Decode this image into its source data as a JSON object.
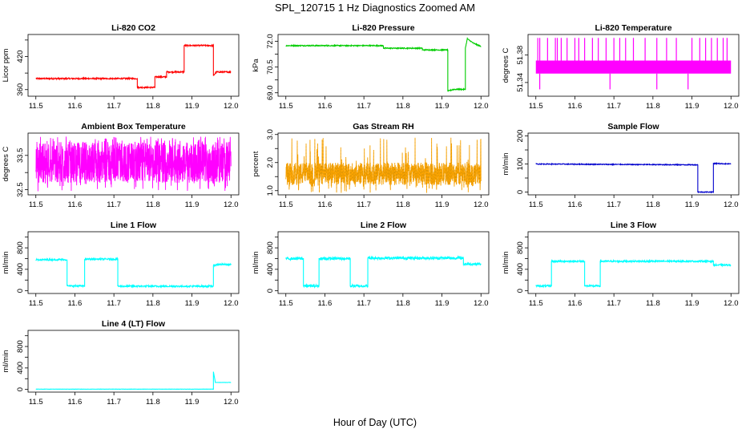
{
  "figure": {
    "title": "SPL_120715  1 Hz Diagnostics Zoomed AM",
    "xlabel": "Hour of Day (UTC)"
  },
  "chart_data": [
    {
      "id": "co2",
      "type": "line",
      "title": "Li-820 CO2",
      "ylabel": "Licor ppm",
      "color": "#ff0000",
      "xlim": [
        11.48,
        12.02
      ],
      "ylim": [
        348,
        460
      ],
      "xticks": [
        11.5,
        11.6,
        11.7,
        11.8,
        11.9,
        12.0
      ],
      "xtick_labels": [
        "11.5",
        "11.6",
        "11.7",
        "11.8",
        "11.9",
        "12.0"
      ],
      "yticks": [
        360,
        390,
        420,
        450
      ],
      "ytick_labels": [
        "360",
        "",
        "420",
        ""
      ],
      "noise": 1.2,
      "points": [
        [
          11.5,
          380
        ],
        [
          11.76,
          380
        ],
        [
          11.76,
          364
        ],
        [
          11.805,
          364
        ],
        [
          11.805,
          383
        ],
        [
          11.835,
          383
        ],
        [
          11.835,
          392
        ],
        [
          11.88,
          392
        ],
        [
          11.88,
          440
        ],
        [
          11.955,
          440
        ],
        [
          11.955,
          385
        ],
        [
          11.962,
          392
        ],
        [
          12.0,
          392
        ]
      ]
    },
    {
      "id": "pressure",
      "type": "line",
      "title": "Li-820 Pressure",
      "ylabel": "kPa",
      "color": "#00cc00",
      "xlim": [
        11.48,
        12.02
      ],
      "ylim": [
        68.8,
        72.4
      ],
      "xticks": [
        11.5,
        11.6,
        11.7,
        11.8,
        11.9,
        12.0
      ],
      "xtick_labels": [
        "11.5",
        "11.6",
        "11.7",
        "11.8",
        "11.9",
        "12.0"
      ],
      "yticks": [
        69.0,
        69.75,
        70.5,
        71.25,
        72.0
      ],
      "ytick_labels": [
        "69.0",
        "",
        "70.5",
        "",
        "72.0"
      ],
      "noise": 0.03,
      "points": [
        [
          11.5,
          71.75
        ],
        [
          11.75,
          71.75
        ],
        [
          11.75,
          71.6
        ],
        [
          11.85,
          71.6
        ],
        [
          11.85,
          71.5
        ],
        [
          11.915,
          71.5
        ],
        [
          11.915,
          69.1
        ],
        [
          11.93,
          69.2
        ],
        [
          11.96,
          69.2
        ],
        [
          11.96,
          71.6
        ],
        [
          11.965,
          72.15
        ],
        [
          11.98,
          71.9
        ],
        [
          12.0,
          71.7
        ]
      ]
    },
    {
      "id": "licor_temp",
      "type": "line",
      "title": "Li-820 Temperature",
      "ylabel": "degrees C",
      "color": "#ff00ff",
      "xlim": [
        11.48,
        12.02
      ],
      "ylim": [
        51.32,
        51.41
      ],
      "xticks": [
        11.5,
        11.6,
        11.7,
        11.8,
        11.9,
        12.0
      ],
      "xtick_labels": [
        "11.5",
        "11.6",
        "11.7",
        "11.8",
        "11.9",
        "12.0"
      ],
      "yticks": [
        51.34,
        51.38
      ],
      "ytick_labels": [
        "51.34",
        "51.38"
      ],
      "band": [
        51.353,
        51.372
      ],
      "spikes_up": [
        11.505,
        11.51,
        11.53,
        11.55,
        11.555,
        11.565,
        11.58,
        11.6,
        11.61,
        11.625,
        11.645,
        11.66,
        11.68,
        11.7,
        11.715,
        11.73,
        11.75,
        11.78,
        11.81,
        11.835,
        11.86,
        11.9,
        11.92,
        11.935,
        11.95,
        11.965,
        11.98,
        11.99
      ],
      "spikes_down": [
        11.51,
        11.69,
        11.81,
        11.89
      ],
      "spike_top": 51.405,
      "spike_bottom": 51.33
    },
    {
      "id": "box_temp",
      "type": "line",
      "title": "Ambient Box Temperature",
      "ylabel": "degrees C",
      "color": "#ff00ff",
      "xlim": [
        11.48,
        12.02
      ],
      "ylim": [
        32.35,
        34.15
      ],
      "xticks": [
        11.5,
        11.6,
        11.7,
        11.8,
        11.9,
        12.0
      ],
      "xtick_labels": [
        "11.5",
        "11.6",
        "11.7",
        "11.8",
        "11.9",
        "12.0"
      ],
      "yticks": [
        32.5,
        33.0,
        33.5
      ],
      "ytick_labels": [
        "32.5",
        "",
        "33.5"
      ],
      "band": [
        32.7,
        33.9
      ],
      "extremes": [
        32.45,
        34.05
      ]
    },
    {
      "id": "rh",
      "type": "line",
      "title": "Gas Stream RH",
      "ylabel": "percent",
      "color": "#ffa500",
      "xlim": [
        11.48,
        12.02
      ],
      "ylim": [
        0.85,
        3.05
      ],
      "xticks": [
        11.5,
        11.6,
        11.7,
        11.8,
        11.9,
        12.0
      ],
      "xtick_labels": [
        "11.5",
        "11.6",
        "11.7",
        "11.8",
        "11.9",
        "12.0"
      ],
      "yticks": [
        1.0,
        1.5,
        2.0,
        2.5,
        3.0
      ],
      "ytick_labels": [
        "1.0",
        "",
        "2.0",
        "",
        "3.0"
      ],
      "band": [
        1.2,
        2.0
      ],
      "extremes": [
        0.9,
        2.9
      ]
    },
    {
      "id": "sample_flow",
      "type": "line",
      "title": "Sample Flow",
      "ylabel": "ml/min",
      "color": "#0000cd",
      "xlim": [
        11.48,
        12.02
      ],
      "ylim": [
        -10,
        210
      ],
      "xticks": [
        11.5,
        11.6,
        11.7,
        11.8,
        11.9,
        12.0
      ],
      "xtick_labels": [
        "11.5",
        "11.6",
        "11.7",
        "11.8",
        "11.9",
        "12.0"
      ],
      "yticks": [
        0,
        50,
        100,
        150,
        200
      ],
      "ytick_labels": [
        "0",
        "",
        "100",
        "",
        "200"
      ],
      "noise": 1.5,
      "points": [
        [
          11.5,
          100
        ],
        [
          11.75,
          98
        ],
        [
          11.915,
          97
        ],
        [
          11.915,
          0
        ],
        [
          11.955,
          0
        ],
        [
          11.955,
          102
        ],
        [
          12.0,
          100
        ]
      ]
    },
    {
      "id": "line1",
      "type": "line",
      "title": "Line 1 Flow",
      "ylabel": "ml/min",
      "color": "#00ffff",
      "xlim": [
        11.48,
        12.02
      ],
      "ylim": [
        -50,
        1100
      ],
      "xticks": [
        11.5,
        11.6,
        11.7,
        11.8,
        11.9,
        12.0
      ],
      "xtick_labels": [
        "11.5",
        "11.6",
        "11.7",
        "11.8",
        "11.9",
        "12.0"
      ],
      "yticks": [
        0,
        200,
        400,
        600,
        800,
        1000
      ],
      "ytick_labels": [
        "0",
        "",
        "400",
        "",
        "800",
        ""
      ],
      "noise": 15,
      "points": [
        [
          11.5,
          580
        ],
        [
          11.58,
          580
        ],
        [
          11.58,
          90
        ],
        [
          11.625,
          90
        ],
        [
          11.625,
          590
        ],
        [
          11.71,
          590
        ],
        [
          11.71,
          85
        ],
        [
          11.955,
          85
        ],
        [
          11.955,
          470
        ],
        [
          11.965,
          490
        ],
        [
          12.0,
          490
        ]
      ]
    },
    {
      "id": "line2",
      "type": "line",
      "title": "Line 2 Flow",
      "ylabel": "ml/min",
      "color": "#00ffff",
      "xlim": [
        11.48,
        12.02
      ],
      "ylim": [
        -50,
        1100
      ],
      "xticks": [
        11.5,
        11.6,
        11.7,
        11.8,
        11.9,
        12.0
      ],
      "xtick_labels": [
        "11.5",
        "11.6",
        "11.7",
        "11.8",
        "11.9",
        "12.0"
      ],
      "yticks": [
        0,
        200,
        400,
        600,
        800,
        1000
      ],
      "ytick_labels": [
        "0",
        "",
        "400",
        "",
        "800",
        ""
      ],
      "noise": 25,
      "points": [
        [
          11.5,
          600
        ],
        [
          11.545,
          600
        ],
        [
          11.545,
          90
        ],
        [
          11.585,
          90
        ],
        [
          11.585,
          600
        ],
        [
          11.665,
          600
        ],
        [
          11.665,
          90
        ],
        [
          11.71,
          90
        ],
        [
          11.71,
          610
        ],
        [
          11.955,
          610
        ],
        [
          11.955,
          500
        ],
        [
          12.0,
          500
        ]
      ]
    },
    {
      "id": "line3",
      "type": "line",
      "title": "Line 3 Flow",
      "ylabel": "ml/min",
      "color": "#00ffff",
      "xlim": [
        11.48,
        12.02
      ],
      "ylim": [
        -50,
        1100
      ],
      "xticks": [
        11.5,
        11.6,
        11.7,
        11.8,
        11.9,
        12.0
      ],
      "xtick_labels": [
        "11.5",
        "11.6",
        "11.7",
        "11.8",
        "11.9",
        "12.0"
      ],
      "yticks": [
        0,
        200,
        400,
        600,
        800,
        1000
      ],
      "ytick_labels": [
        "0",
        "",
        "400",
        "",
        "800",
        ""
      ],
      "noise": 15,
      "points": [
        [
          11.5,
          90
        ],
        [
          11.54,
          90
        ],
        [
          11.54,
          550
        ],
        [
          11.625,
          550
        ],
        [
          11.625,
          90
        ],
        [
          11.665,
          90
        ],
        [
          11.665,
          550
        ],
        [
          11.955,
          550
        ],
        [
          11.955,
          480
        ],
        [
          12.0,
          480
        ]
      ]
    },
    {
      "id": "line4",
      "type": "line",
      "title": "Line 4 (LT) Flow",
      "ylabel": "ml/min",
      "color": "#00ffff",
      "xlim": [
        11.48,
        12.02
      ],
      "ylim": [
        -50,
        1100
      ],
      "xticks": [
        11.5,
        11.6,
        11.7,
        11.8,
        11.9,
        12.0
      ],
      "xtick_labels": [
        "11.5",
        "11.6",
        "11.7",
        "11.8",
        "11.9",
        "12.0"
      ],
      "yticks": [
        0,
        200,
        400,
        600,
        800,
        1000
      ],
      "ytick_labels": [
        "0",
        "",
        "400",
        "",
        "800",
        ""
      ],
      "noise": 2,
      "points": [
        [
          11.5,
          5
        ],
        [
          11.955,
          5
        ],
        [
          11.955,
          330
        ],
        [
          11.96,
          130
        ],
        [
          12.0,
          130
        ]
      ]
    }
  ]
}
